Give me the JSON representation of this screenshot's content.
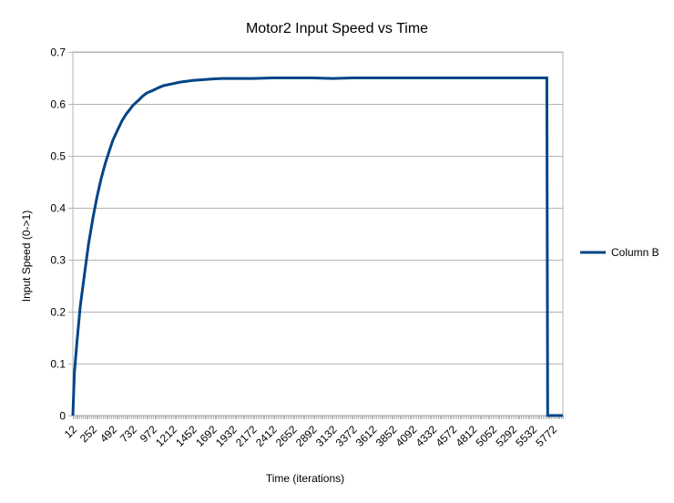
{
  "chart_data": {
    "type": "line",
    "title": "Motor2 Input Speed vs Time",
    "xlabel": "Time (iterations)",
    "ylabel": "Input Speed (0->1)",
    "ylim": [
      0,
      0.7
    ],
    "yticks": [
      "0",
      "0.1",
      "0.2",
      "0.3",
      "0.4",
      "0.5",
      "0.6",
      "0.7"
    ],
    "xlim": [
      12,
      5892
    ],
    "xticks": [
      "12",
      "252",
      "492",
      "732",
      "972",
      "1212",
      "1452",
      "1692",
      "1932",
      "2172",
      "2412",
      "2652",
      "2892",
      "3132",
      "3372",
      "3612",
      "3852",
      "4092",
      "4332",
      "4572",
      "4812",
      "5052",
      "5292",
      "5532",
      "5772"
    ],
    "grid": true,
    "legend_position": "right",
    "series": [
      {
        "name": "Column B",
        "color": "#004586",
        "x": [
          12,
          30,
          60,
          100,
          150,
          200,
          252,
          300,
          350,
          400,
          450,
          492,
          550,
          600,
          650,
          700,
          732,
          800,
          850,
          900,
          972,
          1050,
          1100,
          1212,
          1300,
          1452,
          1600,
          1692,
          1800,
          1932,
          2172,
          2412,
          2652,
          2892,
          3132,
          3372,
          3612,
          3852,
          4092,
          4332,
          4572,
          4812,
          5052,
          5292,
          5532,
          5700,
          5710,
          5772,
          5892
        ],
        "values": [
          0,
          0.08,
          0.14,
          0.21,
          0.27,
          0.33,
          0.38,
          0.42,
          0.455,
          0.485,
          0.51,
          0.53,
          0.55,
          0.567,
          0.58,
          0.59,
          0.597,
          0.607,
          0.615,
          0.621,
          0.626,
          0.632,
          0.635,
          0.639,
          0.642,
          0.645,
          0.647,
          0.648,
          0.649,
          0.649,
          0.649,
          0.65,
          0.65,
          0.65,
          0.649,
          0.65,
          0.65,
          0.65,
          0.65,
          0.65,
          0.65,
          0.65,
          0.65,
          0.65,
          0.65,
          0.65,
          0,
          0,
          0
        ]
      }
    ]
  }
}
